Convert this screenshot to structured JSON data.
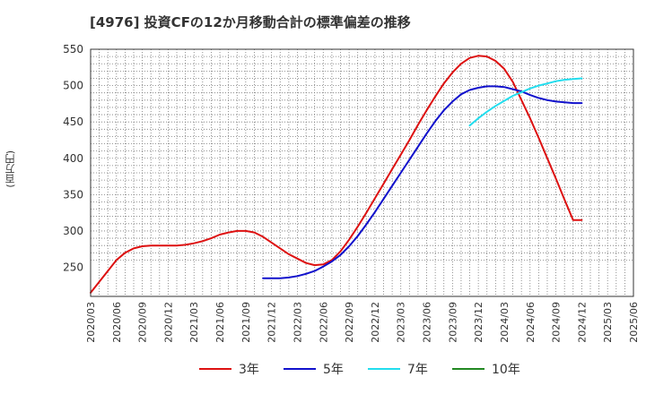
{
  "title": "[4976]  投資CFの12か月移動合計の標準偏差の推移",
  "chart_data": {
    "type": "line",
    "ylabel": "(百万円)",
    "ylim": [
      210,
      550
    ],
    "yticks": [
      250,
      300,
      350,
      400,
      450,
      500,
      550
    ],
    "xlim": [
      "2020-03",
      "2025-06"
    ],
    "xticks": [
      "2020/03",
      "2020/06",
      "2020/09",
      "2020/12",
      "2021/03",
      "2021/06",
      "2021/09",
      "2021/12",
      "2022/03",
      "2022/06",
      "2022/09",
      "2022/12",
      "2023/03",
      "2023/06",
      "2023/09",
      "2023/12",
      "2024/03",
      "2024/06",
      "2024/09",
      "2024/12",
      "2025/03",
      "2025/06"
    ],
    "grid": true,
    "legend_position": "bottom",
    "series": [
      {
        "name": "3年",
        "color": "#dd1111",
        "x": [
          "2020-03",
          "2020-04",
          "2020-05",
          "2020-06",
          "2020-07",
          "2020-08",
          "2020-09",
          "2020-10",
          "2020-11",
          "2020-12",
          "2021-01",
          "2021-02",
          "2021-03",
          "2021-04",
          "2021-05",
          "2021-06",
          "2021-07",
          "2021-08",
          "2021-09",
          "2021-10",
          "2021-11",
          "2021-12",
          "2022-01",
          "2022-02",
          "2022-03",
          "2022-04",
          "2022-05",
          "2022-06",
          "2022-07",
          "2022-08",
          "2022-09",
          "2022-10",
          "2022-11",
          "2022-12",
          "2023-01",
          "2023-02",
          "2023-03",
          "2023-04",
          "2023-05",
          "2023-06",
          "2023-07",
          "2023-08",
          "2023-09",
          "2023-10",
          "2023-11",
          "2023-12",
          "2024-01",
          "2024-02",
          "2024-03",
          "2024-04",
          "2024-05",
          "2024-06",
          "2024-07",
          "2024-08",
          "2024-09",
          "2024-10",
          "2024-11",
          "2024-12"
        ],
        "y": [
          215,
          230,
          245,
          260,
          270,
          276,
          279,
          280,
          280,
          280,
          280,
          281,
          283,
          286,
          290,
          295,
          298,
          300,
          300,
          298,
          292,
          284,
          276,
          268,
          262,
          256,
          253,
          254,
          260,
          272,
          288,
          306,
          325,
          345,
          365,
          385,
          405,
          425,
          446,
          466,
          485,
          503,
          518,
          530,
          538,
          541,
          540,
          534,
          523,
          505,
          480,
          455,
          428,
          400,
          372,
          343,
          315,
          315
        ]
      },
      {
        "name": "5年",
        "color": "#1111cc",
        "x": [
          "2021-11",
          "2021-12",
          "2022-01",
          "2022-02",
          "2022-03",
          "2022-04",
          "2022-05",
          "2022-06",
          "2022-07",
          "2022-08",
          "2022-09",
          "2022-10",
          "2022-11",
          "2022-12",
          "2023-01",
          "2023-02",
          "2023-03",
          "2023-04",
          "2023-05",
          "2023-06",
          "2023-07",
          "2023-08",
          "2023-09",
          "2023-10",
          "2023-11",
          "2023-12",
          "2024-01",
          "2024-02",
          "2024-03",
          "2024-04",
          "2024-05",
          "2024-06",
          "2024-07",
          "2024-08",
          "2024-09",
          "2024-10",
          "2024-11",
          "2024-12"
        ],
        "y": [
          235,
          235,
          235,
          236,
          238,
          241,
          245,
          251,
          258,
          267,
          279,
          293,
          309,
          326,
          344,
          362,
          380,
          398,
          416,
          434,
          451,
          466,
          478,
          488,
          494,
          497,
          499,
          499,
          498,
          495,
          492,
          487,
          483,
          480,
          478,
          477,
          476,
          476
        ]
      },
      {
        "name": "7年",
        "color": "#22ddee",
        "x": [
          "2023-11",
          "2023-12",
          "2024-01",
          "2024-02",
          "2024-03",
          "2024-04",
          "2024-05",
          "2024-06",
          "2024-07",
          "2024-08",
          "2024-09",
          "2024-10",
          "2024-11",
          "2024-12"
        ],
        "y": [
          445,
          455,
          464,
          472,
          479,
          486,
          491,
          496,
          500,
          503,
          506,
          508,
          509,
          510
        ]
      },
      {
        "name": "10年",
        "color": "#228822",
        "x": [],
        "y": []
      }
    ]
  }
}
